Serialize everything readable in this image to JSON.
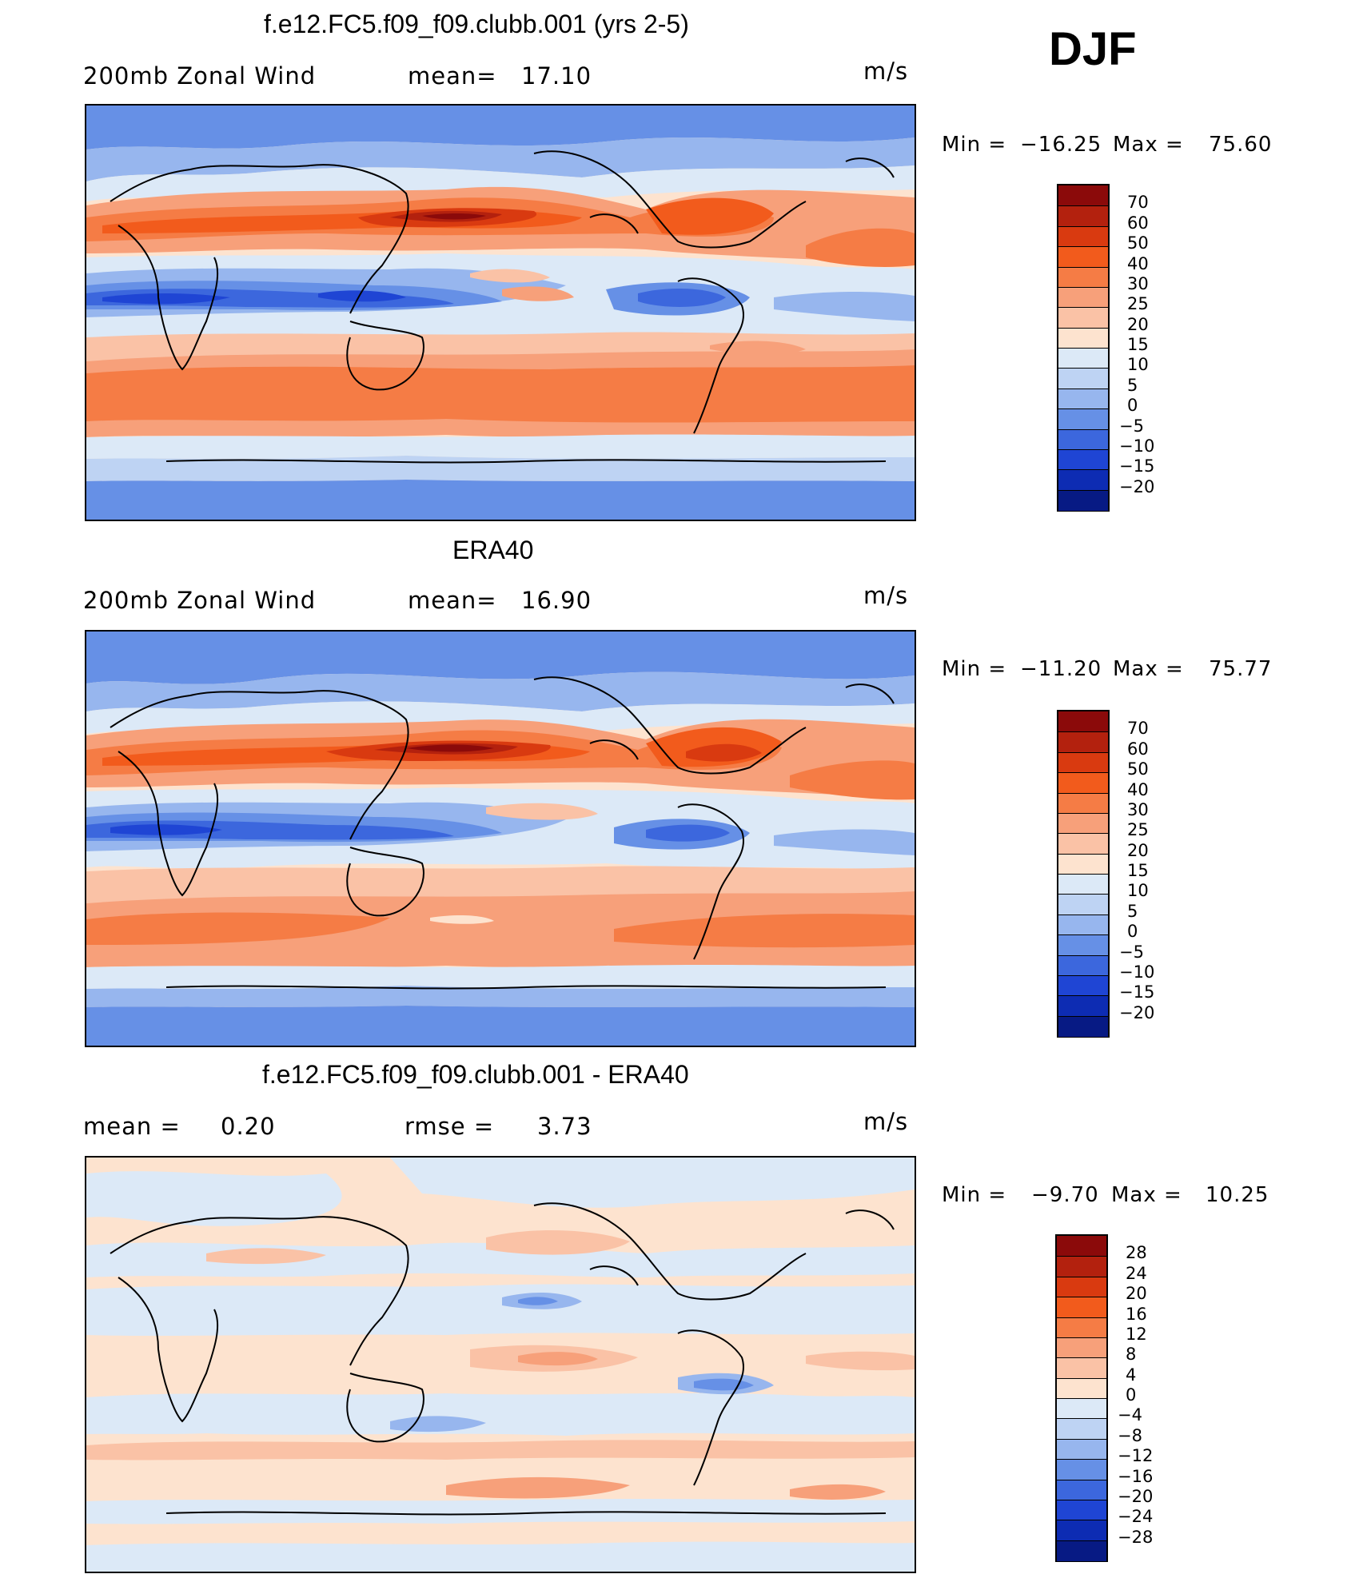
{
  "season": "DJF",
  "units": "m/s",
  "chart_data": [
    {
      "type": "heatmap",
      "title": "f.e12.FC5.f09_f09.clubb.001 (yrs 2-5)",
      "left_label": "200mb Zonal Wind",
      "center_label": "mean=",
      "center_value": "17.10",
      "right_label": "m/s",
      "min_label": "Min  =",
      "min_value": "−16.25",
      "max_label": "Max  =",
      "max_value": "75.60",
      "stats": {
        "mean": 17.1,
        "min": -16.25,
        "max": 75.6
      },
      "colorbar_levels": [
        "70",
        "60",
        "50",
        "40",
        "30",
        "25",
        "20",
        "15",
        "10",
        "5",
        "0",
        "−5",
        "−10",
        "−15",
        "−20"
      ]
    },
    {
      "type": "heatmap",
      "title": "ERA40",
      "left_label": "200mb Zonal Wind",
      "center_label": "mean=",
      "center_value": "16.90",
      "right_label": "m/s",
      "min_label": "Min  =",
      "min_value": "−11.20",
      "max_label": "Max  =",
      "max_value": "75.77",
      "stats": {
        "mean": 16.9,
        "min": -11.2,
        "max": 75.77
      },
      "colorbar_levels": [
        "70",
        "60",
        "50",
        "40",
        "30",
        "25",
        "20",
        "15",
        "10",
        "5",
        "0",
        "−5",
        "−10",
        "−15",
        "−20"
      ]
    },
    {
      "type": "heatmap",
      "title": "f.e12.FC5.f09_f09.clubb.001 - ERA40",
      "left_label": "mean  =",
      "center_label": "rmse  =",
      "center_value": "3.73",
      "left_value": "0.20",
      "right_label": "m/s",
      "min_label": "Min  =",
      "min_value": "−9.70",
      "max_label": "Max  =",
      "max_value": "10.25",
      "stats": {
        "mean": 0.2,
        "rmse": 3.73,
        "min": -9.7,
        "max": 10.25
      },
      "colorbar_levels": [
        "28",
        "24",
        "20",
        "16",
        "12",
        "8",
        "4",
        "0",
        "−4",
        "−8",
        "−12",
        "−16",
        "−20",
        "−24",
        "−28"
      ]
    }
  ],
  "colors": {
    "palette_top_to_bottom": [
      "#8b0a0a",
      "#b3210e",
      "#d93a10",
      "#f25b1c",
      "#f57c45",
      "#f7a07a",
      "#fac2a6",
      "#fde3cf",
      "#dce9f7",
      "#bed3f3",
      "#97b6ee",
      "#6690e6",
      "#3c67dd",
      "#1f45d4",
      "#0d2cb3",
      "#071a84"
    ],
    "diff_palette_top_to_bottom": [
      "#8b0a0a",
      "#b3210e",
      "#d93a10",
      "#f25b1c",
      "#f57c45",
      "#f7a07a",
      "#fac2a6",
      "#fde3cf",
      "#dce9f7",
      "#bed3f3",
      "#97b6ee",
      "#6690e6",
      "#3c67dd",
      "#1f45d4",
      "#0d2cb3",
      "#071a84"
    ]
  }
}
